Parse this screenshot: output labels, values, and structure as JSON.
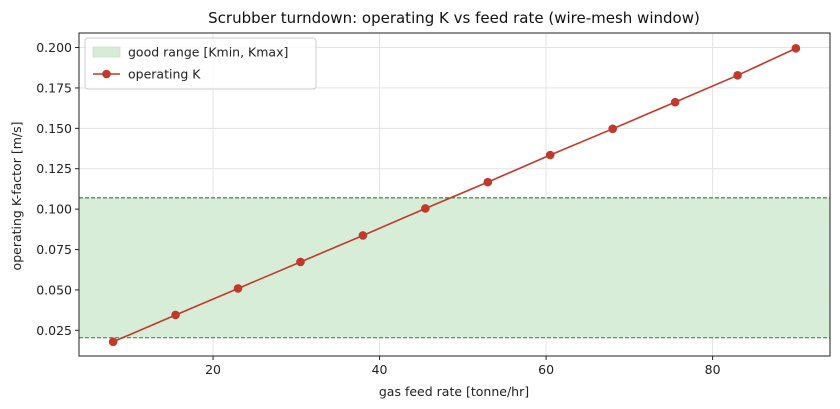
{
  "chart_data": {
    "type": "line",
    "title": "Scrubber turndown: operating K vs feed rate (wire-mesh window)",
    "xlabel": "gas feed rate [tonne/hr]",
    "ylabel": "operating K-factor [m/s]",
    "xlim": [
      3.9,
      94.1
    ],
    "ylim": [
      0.0091,
      0.209
    ],
    "xticks": [
      20,
      40,
      60,
      80
    ],
    "xtick_labels": [
      "20",
      "40",
      "60",
      "80"
    ],
    "yticks": [
      0.025,
      0.05,
      0.075,
      0.1,
      0.125,
      0.15,
      0.175,
      0.2
    ],
    "ytick_labels": [
      "0.025",
      "0.050",
      "0.075",
      "0.100",
      "0.125",
      "0.150",
      "0.175",
      "0.200"
    ],
    "grid": true,
    "legend_position": "top-left",
    "band": {
      "name": "good range [Kmin, Kmax]",
      "ymin": 0.0204,
      "ymax": 0.107,
      "color": "#d6ecd6",
      "line_color": "#2e7d32"
    },
    "series": [
      {
        "name": "operating K",
        "color": "#c0392b",
        "x": [
          8.0,
          15.5,
          23.0,
          30.5,
          38.0,
          45.5,
          53.0,
          60.5,
          68.0,
          75.5,
          83.0,
          90.0
        ],
        "y": [
          0.0179,
          0.0345,
          0.0509,
          0.0673,
          0.0837,
          0.1004,
          0.1167,
          0.1335,
          0.1497,
          0.1662,
          0.1828,
          0.1995
        ]
      }
    ]
  }
}
